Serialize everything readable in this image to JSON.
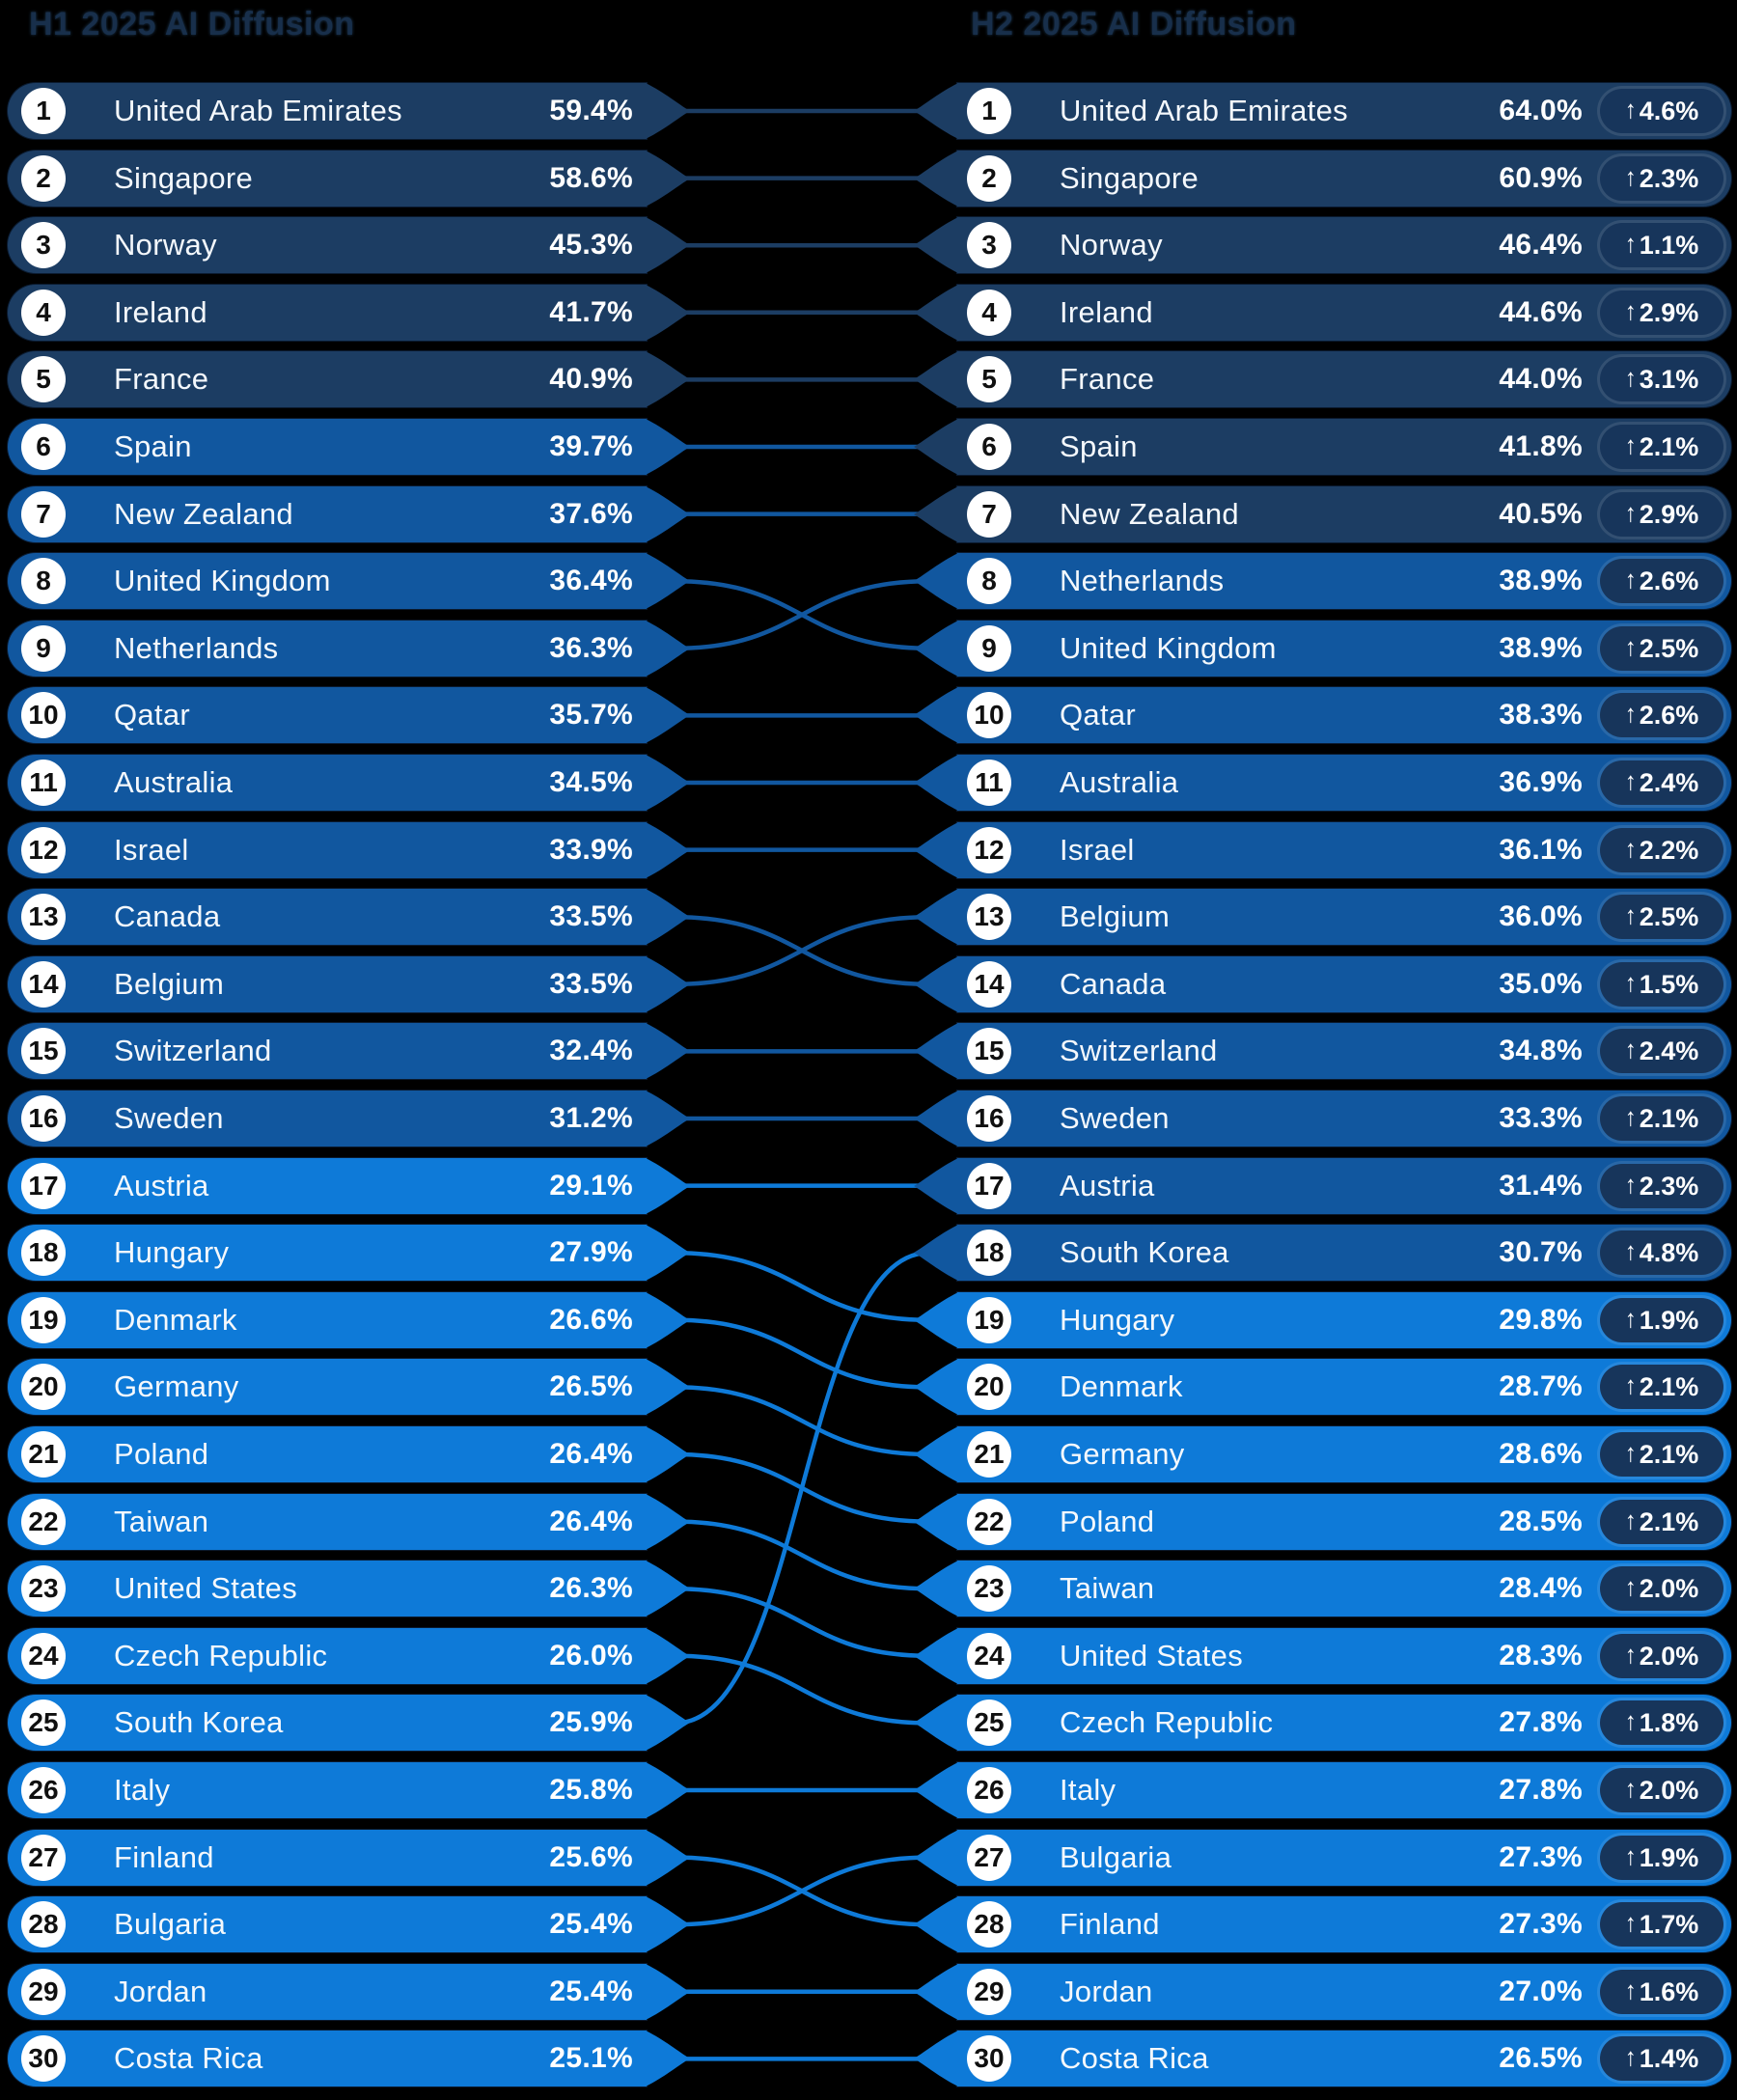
{
  "title": "AI Diffusion country ranking, H1 2025 vs H2 2025",
  "background": "#000000",
  "headers": {
    "left": "H1 2025 AI Diffusion",
    "right": "H2 2025 AI Diffusion"
  },
  "palette": {
    "tier_navy": "#1c3d63",
    "tier_medium": "#11579f",
    "tier_bright": "#0e7ad8",
    "badge": "#17355b",
    "rank_circle": "#ffffff",
    "rank_text": "#101010",
    "row_text": "#ffffff",
    "header_text": "#182f4b",
    "background": "#000000"
  },
  "color_scale": {
    "description": "row color by value",
    "thresholds": [
      40,
      30
    ],
    "tiers": [
      "tier_navy",
      "tier_medium",
      "tier_bright"
    ]
  },
  "chart_data": {
    "type": "table",
    "subtype": "slope-rank-comparison",
    "unit": "%",
    "left_title": "H1 2025 AI Diffusion",
    "right_title": "H2 2025 AI Diffusion",
    "up_arrow": "↑",
    "left": [
      {
        "rank": 1,
        "country": "United Arab Emirates",
        "value": 59.4
      },
      {
        "rank": 2,
        "country": "Singapore",
        "value": 58.6
      },
      {
        "rank": 3,
        "country": "Norway",
        "value": 45.3
      },
      {
        "rank": 4,
        "country": "Ireland",
        "value": 41.7
      },
      {
        "rank": 5,
        "country": "France",
        "value": 40.9
      },
      {
        "rank": 6,
        "country": "Spain",
        "value": 39.7
      },
      {
        "rank": 7,
        "country": "New Zealand",
        "value": 37.6
      },
      {
        "rank": 8,
        "country": "United Kingdom",
        "value": 36.4
      },
      {
        "rank": 9,
        "country": "Netherlands",
        "value": 36.3
      },
      {
        "rank": 10,
        "country": "Qatar",
        "value": 35.7
      },
      {
        "rank": 11,
        "country": "Australia",
        "value": 34.5
      },
      {
        "rank": 12,
        "country": "Israel",
        "value": 33.9
      },
      {
        "rank": 13,
        "country": "Canada",
        "value": 33.5
      },
      {
        "rank": 14,
        "country": "Belgium",
        "value": 33.5
      },
      {
        "rank": 15,
        "country": "Switzerland",
        "value": 32.4
      },
      {
        "rank": 16,
        "country": "Sweden",
        "value": 31.2
      },
      {
        "rank": 17,
        "country": "Austria",
        "value": 29.1
      },
      {
        "rank": 18,
        "country": "Hungary",
        "value": 27.9
      },
      {
        "rank": 19,
        "country": "Denmark",
        "value": 26.6
      },
      {
        "rank": 20,
        "country": "Germany",
        "value": 26.5
      },
      {
        "rank": 21,
        "country": "Poland",
        "value": 26.4
      },
      {
        "rank": 22,
        "country": "Taiwan",
        "value": 26.4
      },
      {
        "rank": 23,
        "country": "United States",
        "value": 26.3
      },
      {
        "rank": 24,
        "country": "Czech Republic",
        "value": 26.0
      },
      {
        "rank": 25,
        "country": "South Korea",
        "value": 25.9
      },
      {
        "rank": 26,
        "country": "Italy",
        "value": 25.8
      },
      {
        "rank": 27,
        "country": "Finland",
        "value": 25.6
      },
      {
        "rank": 28,
        "country": "Bulgaria",
        "value": 25.4
      },
      {
        "rank": 29,
        "country": "Jordan",
        "value": 25.4
      },
      {
        "rank": 30,
        "country": "Costa Rica",
        "value": 25.1
      }
    ],
    "right": [
      {
        "rank": 1,
        "country": "United Arab Emirates",
        "value": 64.0,
        "change": 4.6
      },
      {
        "rank": 2,
        "country": "Singapore",
        "value": 60.9,
        "change": 2.3
      },
      {
        "rank": 3,
        "country": "Norway",
        "value": 46.4,
        "change": 1.1
      },
      {
        "rank": 4,
        "country": "Ireland",
        "value": 44.6,
        "change": 2.9
      },
      {
        "rank": 5,
        "country": "France",
        "value": 44.0,
        "change": 3.1
      },
      {
        "rank": 6,
        "country": "Spain",
        "value": 41.8,
        "change": 2.1
      },
      {
        "rank": 7,
        "country": "New Zealand",
        "value": 40.5,
        "change": 2.9
      },
      {
        "rank": 8,
        "country": "Netherlands",
        "value": 38.9,
        "change": 2.6
      },
      {
        "rank": 9,
        "country": "United Kingdom",
        "value": 38.9,
        "change": 2.5
      },
      {
        "rank": 10,
        "country": "Qatar",
        "value": 38.3,
        "change": 2.6
      },
      {
        "rank": 11,
        "country": "Australia",
        "value": 36.9,
        "change": 2.4
      },
      {
        "rank": 12,
        "country": "Israel",
        "value": 36.1,
        "change": 2.2
      },
      {
        "rank": 13,
        "country": "Belgium",
        "value": 36.0,
        "change": 2.5
      },
      {
        "rank": 14,
        "country": "Canada",
        "value": 35.0,
        "change": 1.5
      },
      {
        "rank": 15,
        "country": "Switzerland",
        "value": 34.8,
        "change": 2.4
      },
      {
        "rank": 16,
        "country": "Sweden",
        "value": 33.3,
        "change": 2.1
      },
      {
        "rank": 17,
        "country": "Austria",
        "value": 31.4,
        "change": 2.3
      },
      {
        "rank": 18,
        "country": "South Korea",
        "value": 30.7,
        "change": 4.8
      },
      {
        "rank": 19,
        "country": "Hungary",
        "value": 29.8,
        "change": 1.9
      },
      {
        "rank": 20,
        "country": "Denmark",
        "value": 28.7,
        "change": 2.1
      },
      {
        "rank": 21,
        "country": "Germany",
        "value": 28.6,
        "change": 2.1
      },
      {
        "rank": 22,
        "country": "Poland",
        "value": 28.5,
        "change": 2.1
      },
      {
        "rank": 23,
        "country": "Taiwan",
        "value": 28.4,
        "change": 2.0
      },
      {
        "rank": 24,
        "country": "United States",
        "value": 28.3,
        "change": 2.0
      },
      {
        "rank": 25,
        "country": "Czech Republic",
        "value": 27.8,
        "change": 1.8
      },
      {
        "rank": 26,
        "country": "Italy",
        "value": 27.8,
        "change": 2.0
      },
      {
        "rank": 27,
        "country": "Bulgaria",
        "value": 27.3,
        "change": 1.9
      },
      {
        "rank": 28,
        "country": "Finland",
        "value": 27.3,
        "change": 1.7
      },
      {
        "rank": 29,
        "country": "Jordan",
        "value": 27.0,
        "change": 1.6
      },
      {
        "rank": 30,
        "country": "Costa Rica",
        "value": 26.5,
        "change": 1.4
      }
    ]
  }
}
